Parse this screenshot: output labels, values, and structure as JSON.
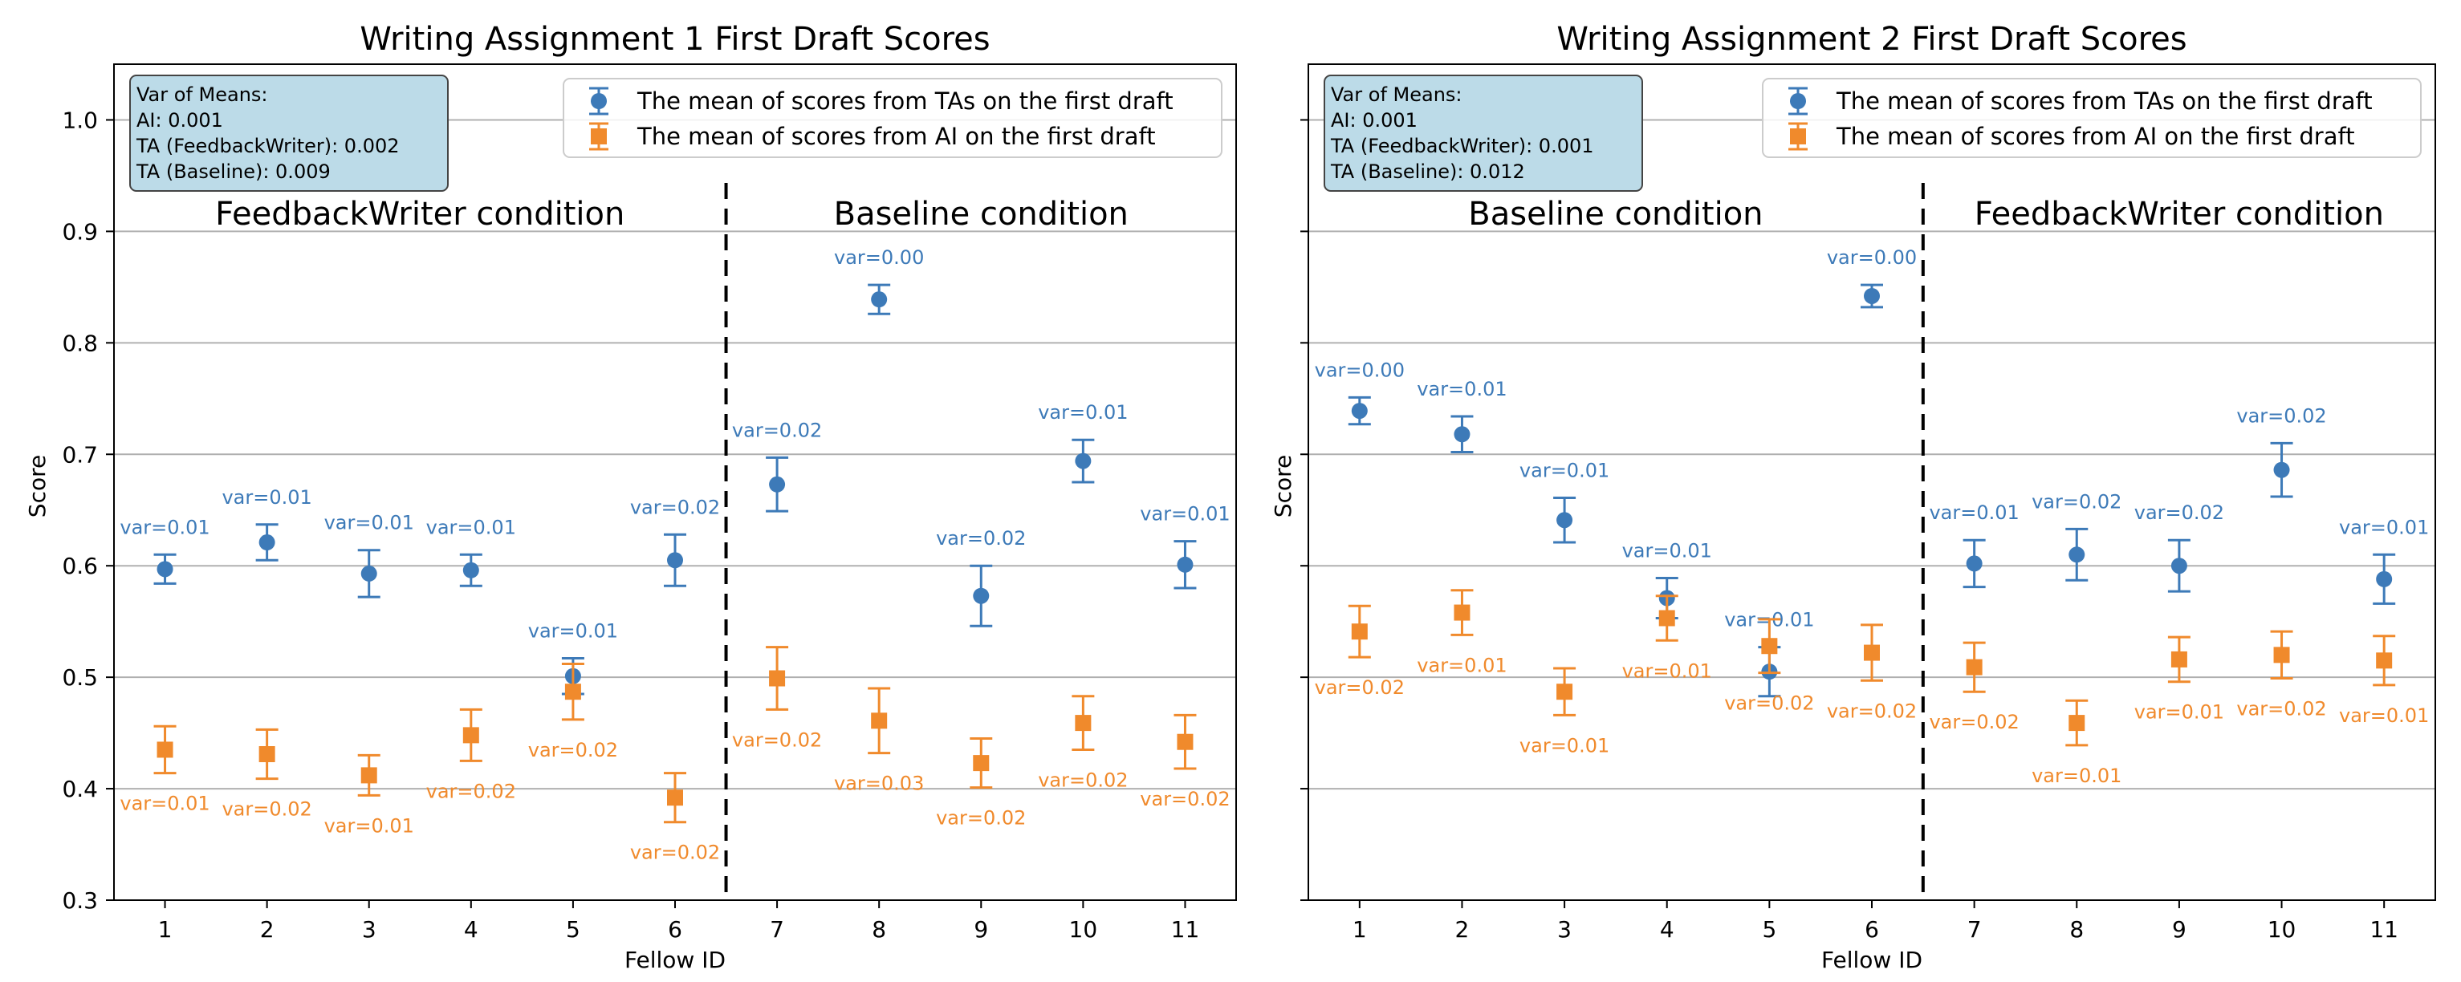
{
  "chart_data": [
    {
      "type": "scatter",
      "title": "Writing Assignment 1 First Draft Scores",
      "xlabel": "Fellow ID",
      "ylabel": "Score",
      "ylim": [
        0.3,
        1.05
      ],
      "yticks": [
        "0.3",
        "0.4",
        "0.5",
        "0.6",
        "0.7",
        "0.8",
        "0.9",
        "1.0"
      ],
      "xticks": [
        "1",
        "2",
        "3",
        "4",
        "5",
        "6",
        "7",
        "8",
        "9",
        "10",
        "11"
      ],
      "grid": "horizontal",
      "legend_position": "top-right",
      "divider_x": 6.5,
      "conditions": [
        {
          "label": "FeedbackWriter condition",
          "side": "left"
        },
        {
          "label": "Baseline condition",
          "side": "right"
        }
      ],
      "var_box": [
        "Var of Means:",
        "AI: 0.001",
        "TA (FeedbackWriter): 0.002",
        "TA (Baseline): 0.009"
      ],
      "series": [
        {
          "name": "The mean of scores from TAs on the first draft",
          "marker": "circle",
          "color": "#3d7ab8",
          "label_position": "above",
          "x": [
            1,
            2,
            3,
            4,
            5,
            6,
            7,
            8,
            9,
            10,
            11
          ],
          "y": [
            0.597,
            0.621,
            0.593,
            0.596,
            0.501,
            0.605,
            0.673,
            0.839,
            0.573,
            0.694,
            0.601
          ],
          "err": [
            0.013,
            0.016,
            0.021,
            0.014,
            0.016,
            0.023,
            0.024,
            0.013,
            0.027,
            0.019,
            0.021
          ],
          "labels": [
            "var=0.01",
            "var=0.01",
            "var=0.01",
            "var=0.01",
            "var=0.01",
            "var=0.02",
            "var=0.02",
            "var=0.00",
            "var=0.02",
            "var=0.01",
            "var=0.01"
          ]
        },
        {
          "name": "The mean of scores from AI on the first draft",
          "marker": "square",
          "color": "#f08a2c",
          "label_position": "below",
          "x": [
            1,
            2,
            3,
            4,
            5,
            6,
            7,
            8,
            9,
            10,
            11
          ],
          "y": [
            0.435,
            0.431,
            0.412,
            0.448,
            0.487,
            0.392,
            0.499,
            0.461,
            0.423,
            0.459,
            0.442
          ],
          "err": [
            0.021,
            0.022,
            0.018,
            0.023,
            0.025,
            0.022,
            0.028,
            0.029,
            0.022,
            0.024,
            0.024
          ],
          "labels": [
            "var=0.01",
            "var=0.02",
            "var=0.01",
            "var=0.02",
            "var=0.02",
            "var=0.02",
            "var=0.02",
            "var=0.03",
            "var=0.02",
            "var=0.02",
            "var=0.02"
          ]
        }
      ]
    },
    {
      "type": "scatter",
      "title": "Writing Assignment 2 First Draft Scores",
      "xlabel": "Fellow ID",
      "ylabel": "Score",
      "ylim": [
        0.3,
        1.05
      ],
      "yticks": [
        "0.3",
        "0.4",
        "0.5",
        "0.6",
        "0.7",
        "0.8",
        "0.9",
        "1.0"
      ],
      "xticks": [
        "1",
        "2",
        "3",
        "4",
        "5",
        "6",
        "7",
        "8",
        "9",
        "10",
        "11"
      ],
      "grid": "horizontal",
      "legend_position": "top-right",
      "divider_x": 6.5,
      "conditions": [
        {
          "label": "Baseline condition",
          "side": "left"
        },
        {
          "label": "FeedbackWriter condition",
          "side": "right"
        }
      ],
      "var_box": [
        "Var of Means:",
        "AI: 0.001",
        "TA (FeedbackWriter): 0.001",
        "TA (Baseline): 0.012"
      ],
      "series": [
        {
          "name": "The mean of scores from TAs on the first draft",
          "marker": "circle",
          "color": "#3d7ab8",
          "label_position": "above",
          "x": [
            1,
            2,
            3,
            4,
            5,
            6,
            7,
            8,
            9,
            10,
            11
          ],
          "y": [
            0.739,
            0.718,
            0.641,
            0.571,
            0.505,
            0.842,
            0.602,
            0.61,
            0.6,
            0.686,
            0.588
          ],
          "err": [
            0.012,
            0.016,
            0.02,
            0.018,
            0.022,
            0.01,
            0.021,
            0.023,
            0.023,
            0.024,
            0.022
          ],
          "labels": [
            "var=0.00",
            "var=0.01",
            "var=0.01",
            "var=0.01",
            "var=0.01",
            "var=0.00",
            "var=0.01",
            "var=0.02",
            "var=0.02",
            "var=0.02",
            "var=0.01"
          ]
        },
        {
          "name": "The mean of scores from AI on the first draft",
          "marker": "square",
          "color": "#f08a2c",
          "label_position": "below",
          "x": [
            1,
            2,
            3,
            4,
            5,
            6,
            7,
            8,
            9,
            10,
            11
          ],
          "y": [
            0.541,
            0.558,
            0.487,
            0.553,
            0.528,
            0.522,
            0.509,
            0.459,
            0.516,
            0.52,
            0.515
          ],
          "err": [
            0.023,
            0.02,
            0.021,
            0.02,
            0.024,
            0.025,
            0.022,
            0.02,
            0.02,
            0.021,
            0.022
          ],
          "labels": [
            "var=0.02",
            "var=0.01",
            "var=0.01",
            "var=0.01",
            "var=0.02",
            "var=0.02",
            "var=0.02",
            "var=0.01",
            "var=0.01",
            "var=0.02",
            "var=0.01"
          ]
        }
      ]
    }
  ]
}
